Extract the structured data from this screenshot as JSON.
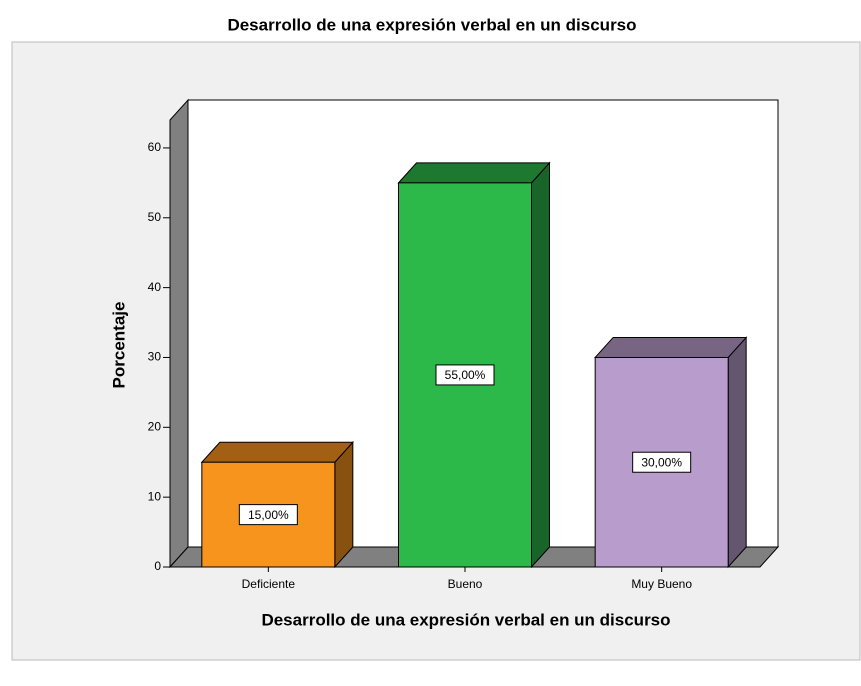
{
  "chart_data": {
    "type": "bar3d",
    "title": "Desarrollo de una expresión verbal en un discurso",
    "x_label": "Desarrollo de una expresión verbal en un discurso",
    "y_label": "Porcentaje",
    "categories": [
      "Deficiente",
      "Bueno",
      "Muy Bueno"
    ],
    "values": [
      15,
      55,
      30
    ],
    "value_labels": [
      "15,00%",
      "55,00%",
      "30,00%"
    ],
    "colors": [
      "#f7941d",
      "#2db84a",
      "#b89ccb"
    ],
    "ylim": [
      0,
      64
    ],
    "yticks": [
      0,
      10,
      20,
      30,
      40,
      50,
      60
    ]
  }
}
